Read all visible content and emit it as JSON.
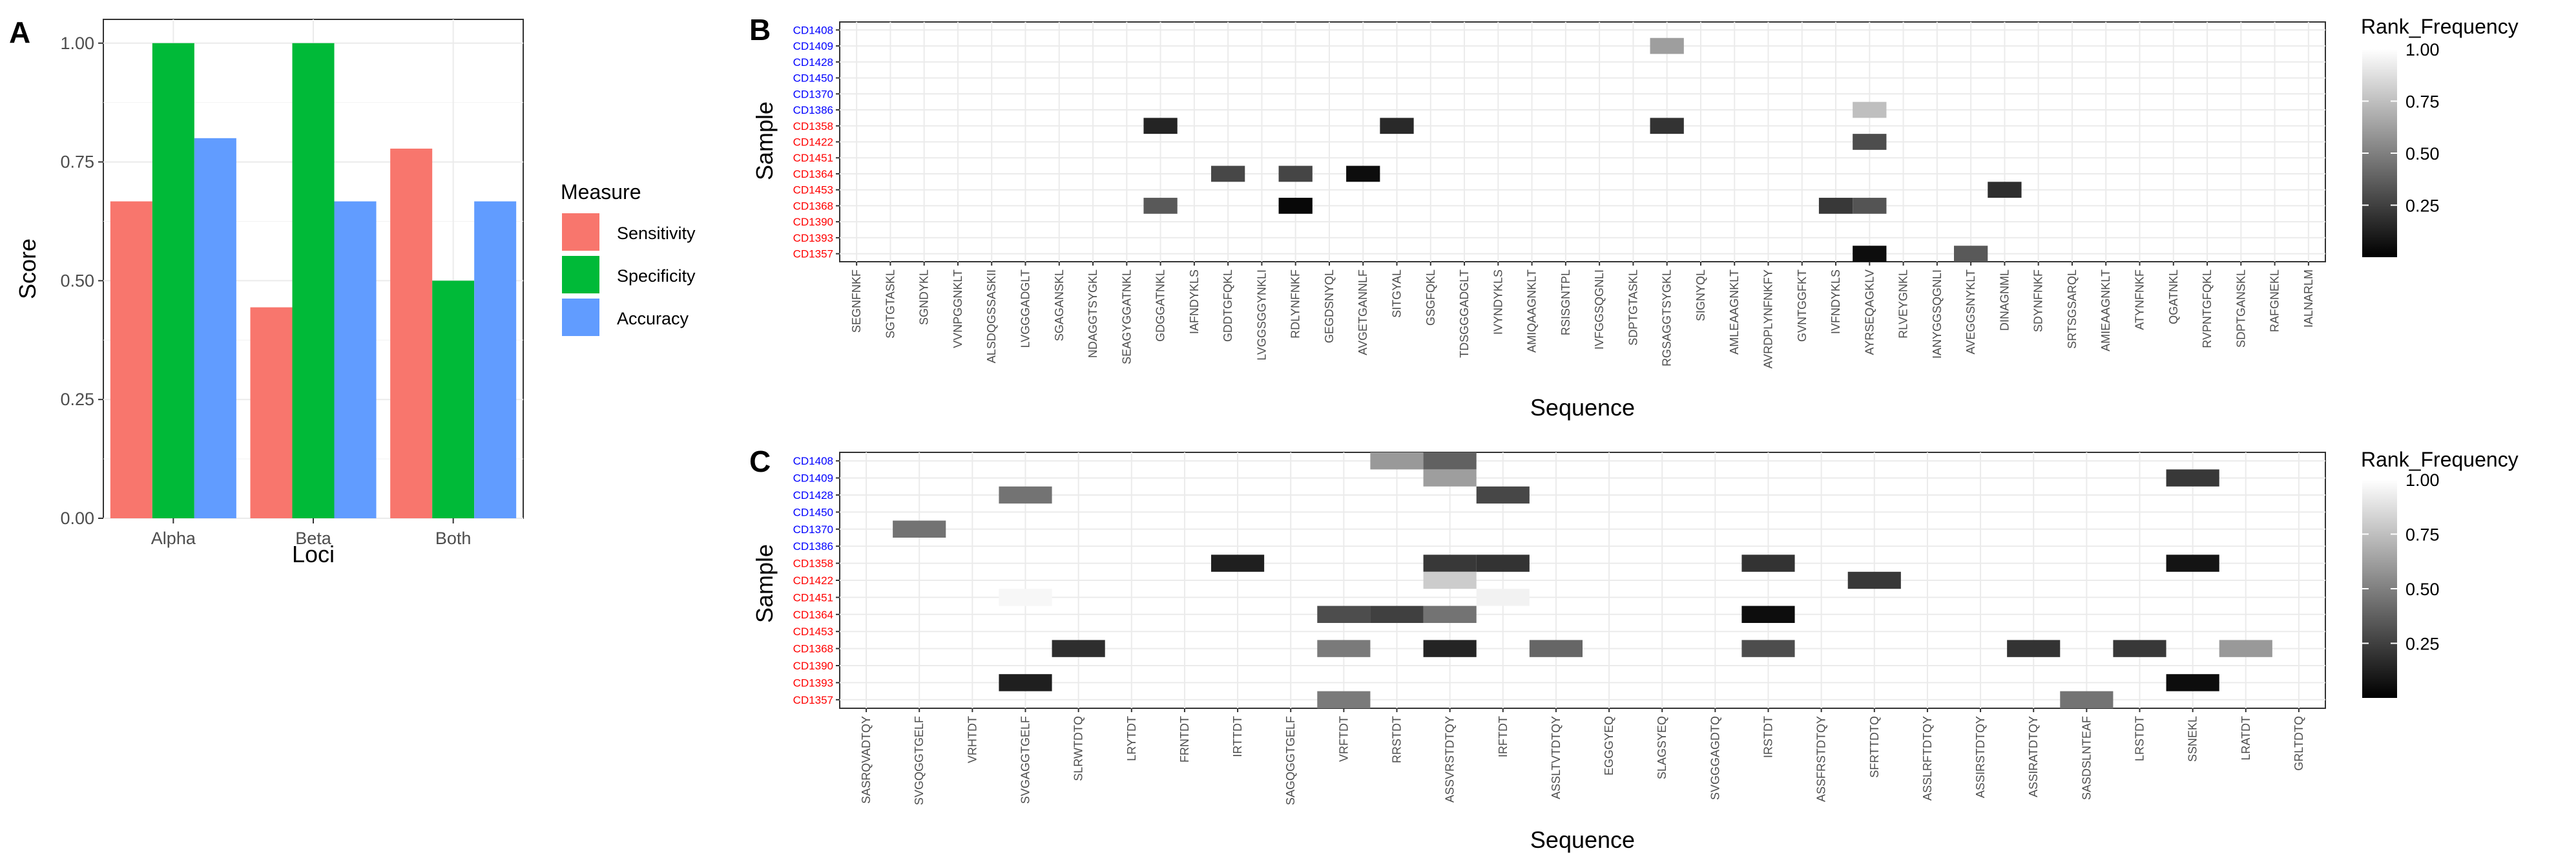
{
  "colors": {
    "sensitivity": "#F8766D",
    "specificity": "#00BA38",
    "accuracy": "#619CFF",
    "panel_bg": "#FFFFFF",
    "grid": "#EBEBEB",
    "sample_blue": "#0000FF",
    "sample_red": "#FF0000"
  },
  "chart_data": [
    {
      "panel": "A",
      "type": "bar",
      "xlabel": "Loci",
      "ylabel": "Score",
      "categories": [
        "Alpha",
        "Beta",
        "Both"
      ],
      "ylim": [
        0,
        1.05
      ],
      "yticks": [
        "0.00",
        "0.25",
        "0.50",
        "0.75",
        "1.00"
      ],
      "legend": {
        "title": "Measure",
        "position": "right"
      },
      "series": [
        {
          "name": "Sensitivity",
          "color_key": "sensitivity",
          "values": [
            0.667,
            0.444,
            0.778
          ]
        },
        {
          "name": "Specificity",
          "color_key": "specificity",
          "values": [
            1.0,
            1.0,
            0.5
          ]
        },
        {
          "name": "Accuracy",
          "color_key": "accuracy",
          "values": [
            0.8,
            0.667,
            0.667
          ]
        }
      ]
    },
    {
      "panel": "B",
      "type": "heatmap",
      "xlabel": "Sequence",
      "ylabel": "Sample",
      "samples": [
        {
          "id": "CD1408",
          "group": "blue"
        },
        {
          "id": "CD1409",
          "group": "blue"
        },
        {
          "id": "CD1428",
          "group": "blue"
        },
        {
          "id": "CD1450",
          "group": "blue"
        },
        {
          "id": "CD1370",
          "group": "blue"
        },
        {
          "id": "CD1386",
          "group": "blue"
        },
        {
          "id": "CD1358",
          "group": "red"
        },
        {
          "id": "CD1422",
          "group": "red"
        },
        {
          "id": "CD1451",
          "group": "red"
        },
        {
          "id": "CD1364",
          "group": "red"
        },
        {
          "id": "CD1453",
          "group": "red"
        },
        {
          "id": "CD1368",
          "group": "red"
        },
        {
          "id": "CD1390",
          "group": "red"
        },
        {
          "id": "CD1393",
          "group": "red"
        },
        {
          "id": "CD1357",
          "group": "red"
        }
      ],
      "sequences": [
        "SEGNFNKF",
        "SGTGTASKL",
        "SGNDYKL",
        "VVNPGGNKLT",
        "ALSDQGSSASKII",
        "LVGGGADGLT",
        "SGAGANSKL",
        "NDAGGTSYGKL",
        "SEAGYGGATNKL",
        "GDGGATNKL",
        "IAFNDYKLS",
        "GDDTGFQKL",
        "LVGGSGGYNKLI",
        "RDLYNFNKF",
        "GEGDSNYQL",
        "AVGETGANNLF",
        "SITGYAL",
        "GSGFQKL",
        "TDSGGGADGLT",
        "IVYNDYKLS",
        "AMIQAAGNKLT",
        "RSISGNTPL",
        "IVFGGSQGNLI",
        "SDPTGTASKL",
        "RGSAGGTSYGKL",
        "SIGNYQL",
        "AMLEAAGNKLT",
        "AVRDPLYNFNKFY",
        "GVNTGGFKT",
        "IVFNDYKLS",
        "AYRSEQAGKLV",
        "RLVEYGNKL",
        "IANYGGSQGNLI",
        "AVEGGSNYKLT",
        "DINAGNML",
        "SDYNFNKF",
        "SRTSGSARQL",
        "AMIEAAGNKLT",
        "ATYNFNKF",
        "QGATNKL",
        "RVPNTGFQKL",
        "SDPTGANSKL",
        "RAFGNEKL",
        "IALNARLM"
      ],
      "fill_range": [
        0.0,
        1.0
      ],
      "legend": {
        "title": "Rank_Frequency",
        "ticks": [
          "0.25",
          "0.50",
          "0.75",
          "1.00"
        ]
      },
      "cells": [
        {
          "sample": "CD1409",
          "sequence": "RGSAGGTSYGKL",
          "value": 0.62
        },
        {
          "sample": "CD1386",
          "sequence": "AYRSEQAGKLV",
          "value": 0.75
        },
        {
          "sample": "CD1358",
          "sequence": "GDGGATNKL",
          "value": 0.14
        },
        {
          "sample": "CD1358",
          "sequence": "SITGYAL",
          "value": 0.16
        },
        {
          "sample": "CD1358",
          "sequence": "RGSAGGTSYGKL",
          "value": 0.2
        },
        {
          "sample": "CD1422",
          "sequence": "AYRSEQAGKLV",
          "value": 0.3
        },
        {
          "sample": "CD1364",
          "sequence": "GDDTGFQKL",
          "value": 0.28
        },
        {
          "sample": "CD1364",
          "sequence": "RDLYNFNKF",
          "value": 0.27
        },
        {
          "sample": "CD1364",
          "sequence": "AVGETGANNLF",
          "value": 0.05
        },
        {
          "sample": "CD1453",
          "sequence": "DINAGNML",
          "value": 0.18
        },
        {
          "sample": "CD1368",
          "sequence": "GDGGATNKL",
          "value": 0.35
        },
        {
          "sample": "CD1368",
          "sequence": "RDLYNFNKF",
          "value": 0.03
        },
        {
          "sample": "CD1368",
          "sequence": "IVFNDYKLS",
          "value": 0.22
        },
        {
          "sample": "CD1368",
          "sequence": "AYRSEQAGKLV",
          "value": 0.33
        },
        {
          "sample": "CD1357",
          "sequence": "AYRSEQAGKLV",
          "value": 0.05
        },
        {
          "sample": "CD1357",
          "sequence": "AVEGGSNYKLT",
          "value": 0.35
        }
      ]
    },
    {
      "panel": "C",
      "type": "heatmap",
      "xlabel": "Sequence",
      "ylabel": "Sample",
      "samples": [
        {
          "id": "CD1408",
          "group": "blue"
        },
        {
          "id": "CD1409",
          "group": "blue"
        },
        {
          "id": "CD1428",
          "group": "blue"
        },
        {
          "id": "CD1450",
          "group": "blue"
        },
        {
          "id": "CD1370",
          "group": "blue"
        },
        {
          "id": "CD1386",
          "group": "blue"
        },
        {
          "id": "CD1358",
          "group": "red"
        },
        {
          "id": "CD1422",
          "group": "red"
        },
        {
          "id": "CD1451",
          "group": "red"
        },
        {
          "id": "CD1364",
          "group": "red"
        },
        {
          "id": "CD1453",
          "group": "red"
        },
        {
          "id": "CD1368",
          "group": "red"
        },
        {
          "id": "CD1390",
          "group": "red"
        },
        {
          "id": "CD1393",
          "group": "red"
        },
        {
          "id": "CD1357",
          "group": "red"
        }
      ],
      "sequences": [
        "SASRQVADTQY",
        "SVGQGGTGELF",
        "VRHTDT",
        "SVGAGGTGELF",
        "SLRWTDTQ",
        "LRYTDT",
        "FRNTDT",
        "IRTTDT",
        "SAGQGGTGELF",
        "VRFTDT",
        "RRSTDT",
        "ASSVRSTDTQY",
        "IRFTDT",
        "ASSLTVTDTQY",
        "EGGGYEQ",
        "SLAGSYEQ",
        "SVGGGAGDTQ",
        "IRSTDT",
        "ASSFRSTDTQY",
        "SFRTTDTQ",
        "ASSLRFTDTQY",
        "ASSIRSTDTQY",
        "ASSIRATDTQY",
        "SASDSLNTEAF",
        "LRSTDT",
        "SSNEKL",
        "LRATDT",
        "GRLTDTQ"
      ],
      "fill_range": [
        0.0,
        1.0
      ],
      "legend": {
        "title": "Rank_Frequency",
        "ticks": [
          "0.25",
          "0.50",
          "0.75",
          "1.00"
        ]
      },
      "cells": [
        {
          "sample": "CD1408",
          "sequence": "RRSTDT",
          "value": 0.6
        },
        {
          "sample": "CD1408",
          "sequence": "ASSVRSTDTQY",
          "value": 0.38
        },
        {
          "sample": "CD1409",
          "sequence": "ASSVRSTDTQY",
          "value": 0.62
        },
        {
          "sample": "CD1409",
          "sequence": "SSNEKL",
          "value": 0.22
        },
        {
          "sample": "CD1428",
          "sequence": "SVGAGGTGELF",
          "value": 0.45
        },
        {
          "sample": "CD1428",
          "sequence": "IRFTDT",
          "value": 0.28
        },
        {
          "sample": "CD1370",
          "sequence": "SVGQGGTGELF",
          "value": 0.45
        },
        {
          "sample": "CD1358",
          "sequence": "IRTTDT",
          "value": 0.12
        },
        {
          "sample": "CD1358",
          "sequence": "ASSVRSTDTQY",
          "value": 0.22
        },
        {
          "sample": "CD1358",
          "sequence": "IRFTDT",
          "value": 0.2
        },
        {
          "sample": "CD1358",
          "sequence": "IRSTDT",
          "value": 0.2
        },
        {
          "sample": "CD1358",
          "sequence": "SSNEKL",
          "value": 0.08
        },
        {
          "sample": "CD1422",
          "sequence": "ASSVRSTDTQY",
          "value": 0.8
        },
        {
          "sample": "CD1422",
          "sequence": "SFRTTDTQ",
          "value": 0.22
        },
        {
          "sample": "CD1451",
          "sequence": "SVGAGGTGELF",
          "value": 0.97
        },
        {
          "sample": "CD1451",
          "sequence": "IRFTDT",
          "value": 0.95
        },
        {
          "sample": "CD1364",
          "sequence": "VRFTDT",
          "value": 0.3
        },
        {
          "sample": "CD1364",
          "sequence": "RRSTDT",
          "value": 0.25
        },
        {
          "sample": "CD1364",
          "sequence": "ASSVRSTDTQY",
          "value": 0.45
        },
        {
          "sample": "CD1364",
          "sequence": "IRSTDT",
          "value": 0.05
        },
        {
          "sample": "CD1368",
          "sequence": "SLRWTDTQ",
          "value": 0.18
        },
        {
          "sample": "CD1368",
          "sequence": "VRFTDT",
          "value": 0.48
        },
        {
          "sample": "CD1368",
          "sequence": "ASSVRSTDTQY",
          "value": 0.14
        },
        {
          "sample": "CD1368",
          "sequence": "ASSLTVTDTQY",
          "value": 0.4
        },
        {
          "sample": "CD1368",
          "sequence": "IRSTDT",
          "value": 0.3
        },
        {
          "sample": "CD1368",
          "sequence": "ASSIRATDTQY",
          "value": 0.2
        },
        {
          "sample": "CD1368",
          "sequence": "LRSTDT",
          "value": 0.22
        },
        {
          "sample": "CD1368",
          "sequence": "LRATDT",
          "value": 0.6
        },
        {
          "sample": "CD1393",
          "sequence": "SVGAGGTGELF",
          "value": 0.12
        },
        {
          "sample": "CD1393",
          "sequence": "SSNEKL",
          "value": 0.05
        },
        {
          "sample": "CD1357",
          "sequence": "VRFTDT",
          "value": 0.48
        },
        {
          "sample": "CD1357",
          "sequence": "SASDSLNTEAF",
          "value": 0.45
        }
      ]
    }
  ]
}
